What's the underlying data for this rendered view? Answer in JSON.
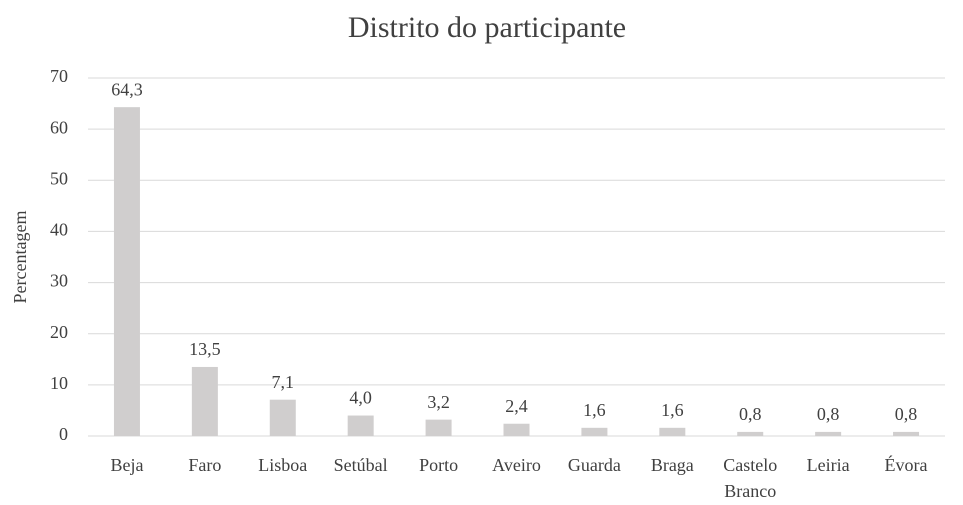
{
  "chart_data": {
    "type": "bar",
    "title": "Distrito do participante",
    "y_label": "Percentagem",
    "categories": [
      "Beja",
      "Faro",
      "Lisboa",
      "Setúbal",
      "Porto",
      "Aveiro",
      "Guarda",
      "Braga",
      "Castelo Branco",
      "Leiria",
      "Évora"
    ],
    "values": [
      64.3,
      13.5,
      7.1,
      4.0,
      3.2,
      2.4,
      1.6,
      1.6,
      0.8,
      0.8,
      0.8
    ],
    "value_labels": [
      "64,3",
      "13,5",
      "7,1",
      "4,0",
      "3,2",
      "2,4",
      "1,6",
      "1,6",
      "0,8",
      "0,8",
      "0,8"
    ],
    "color": "#d0cece",
    "ylim": [
      0,
      70
    ],
    "yticks": [
      0,
      10,
      20,
      30,
      40,
      50,
      60,
      70
    ],
    "grid": true
  }
}
